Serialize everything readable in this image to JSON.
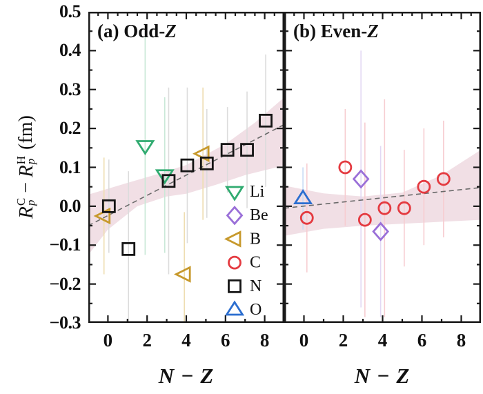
{
  "figure": {
    "background": "#ffffff",
    "border_color": "#1a1a1a",
    "band_color": "#f0dbe2",
    "trend_color": "#6a6a6a",
    "text_color": "#111111"
  },
  "y_axis": {
    "label": {
      "r1": "R",
      "sup1": "C",
      "sub1": "p",
      "minus": "−",
      "r2": "R",
      "sup2": "H",
      "sub2": "p",
      "unit": "(fm)"
    },
    "tick_values": [
      0.5,
      0.4,
      0.3,
      0.2,
      0.1,
      0.0,
      -0.1,
      -0.2,
      -0.3
    ],
    "tick_labels": [
      "0.5",
      "0.4",
      "0.3",
      "0.2",
      "0.1",
      "0.0",
      "−0.1",
      "−0.2",
      "−0.3"
    ]
  },
  "x_axis": {
    "tick_values": [
      0,
      2,
      4,
      6,
      8
    ],
    "tick_labels": [
      "0",
      "2",
      "4",
      "6",
      "8"
    ]
  },
  "series": {
    "Li": {
      "marker": "triangle-down",
      "color": "#30ab70",
      "light": "#c9e8d7"
    },
    "Be": {
      "marker": "diamond",
      "color": "#9a6fd8",
      "light": "#e3d8f4"
    },
    "B": {
      "marker": "triangle-left",
      "color": "#c7992c",
      "light": "#eeddb0"
    },
    "C": {
      "marker": "circle",
      "color": "#e43a40",
      "light": "#f7cdd1"
    },
    "N": {
      "marker": "square",
      "color": "#141414",
      "light": "#dcdcdc"
    },
    "O": {
      "marker": "triangle-up",
      "color": "#2b6ed0",
      "light": "#c9dbf4"
    }
  },
  "legend": [
    {
      "key": "Li",
      "label": "Li"
    },
    {
      "key": "Be",
      "label": "Be"
    },
    {
      "key": "B",
      "label": "B"
    },
    {
      "key": "C",
      "label": "C"
    },
    {
      "key": "N",
      "label": "N"
    },
    {
      "key": "O",
      "label": "O"
    }
  ],
  "chart_data": [
    {
      "type": "scatter",
      "id": "panel-odd-z",
      "title_prefix": "(a) Odd-",
      "title_z": "Z",
      "xlabel": "N − Z",
      "xlim": [
        -1,
        9
      ],
      "ylim": [
        -0.3,
        0.5
      ],
      "show_y_tick_labels": true,
      "trend": {
        "x": [
          -1,
          9
        ],
        "y": [
          -0.05,
          0.21
        ]
      },
      "band": {
        "top": [
          [
            -1,
            0.03
          ],
          [
            1,
            0.06
          ],
          [
            2.5,
            0.082
          ],
          [
            4,
            0.106
          ],
          [
            6,
            0.16
          ],
          [
            7.5,
            0.215
          ],
          [
            9,
            0.28
          ]
        ],
        "bottom": [
          [
            -1,
            -0.125
          ],
          [
            0,
            -0.06
          ],
          [
            1.5,
            0.0
          ],
          [
            3,
            0.025
          ],
          [
            4,
            0.032
          ],
          [
            5.5,
            0.055
          ],
          [
            7,
            0.08
          ],
          [
            9,
            0.105
          ]
        ]
      },
      "points": [
        {
          "series": "Li",
          "x": 1.9,
          "y": 0.155,
          "err": 0.28
        },
        {
          "series": "Li",
          "x": 2.9,
          "y": 0.08,
          "err": 0.2
        },
        {
          "series": "B",
          "x": -0.2,
          "y": -0.025,
          "err": 0.15
        },
        {
          "series": "B",
          "x": 3.9,
          "y": -0.175,
          "err": 0.16
        },
        {
          "series": "B",
          "x": 4.85,
          "y": 0.135,
          "err": 0.17
        },
        {
          "series": "N",
          "x": 0.05,
          "y": 0.0,
          "err": 0.12
        },
        {
          "series": "N",
          "x": 1.05,
          "y": -0.11,
          "err": 0.2
        },
        {
          "series": "N",
          "x": 3.1,
          "y": 0.065,
          "err": 0.24
        },
        {
          "series": "N",
          "x": 4.05,
          "y": 0.105,
          "err": 0.2
        },
        {
          "series": "N",
          "x": 5.05,
          "y": 0.11,
          "err": 0.14
        },
        {
          "series": "N",
          "x": 6.1,
          "y": 0.145,
          "err": 0.11
        },
        {
          "series": "N",
          "x": 7.1,
          "y": 0.145,
          "err": 0.15
        },
        {
          "series": "N",
          "x": 8.05,
          "y": 0.22,
          "err": 0.17
        }
      ]
    },
    {
      "type": "scatter",
      "id": "panel-even-z",
      "title_prefix": "(b) Even-",
      "title_z": "Z",
      "xlabel": "N − Z",
      "xlim": [
        -1,
        9
      ],
      "ylim": [
        -0.3,
        0.5
      ],
      "show_y_tick_labels": false,
      "trend": {
        "x": [
          -1,
          9
        ],
        "y": [
          -0.005,
          0.048
        ]
      },
      "band": {
        "top": [
          [
            -1,
            0.053
          ],
          [
            1,
            0.033
          ],
          [
            3,
            0.025
          ],
          [
            5,
            0.035
          ],
          [
            7,
            0.08
          ],
          [
            9,
            0.145
          ]
        ],
        "bottom": [
          [
            -1,
            -0.076
          ],
          [
            1,
            -0.058
          ],
          [
            3,
            -0.05
          ],
          [
            5,
            -0.045
          ],
          [
            7,
            -0.04
          ],
          [
            9,
            -0.035
          ]
        ]
      },
      "points": [
        {
          "series": "O",
          "x": -0.05,
          "y": 0.02,
          "err": 0.08
        },
        {
          "series": "C",
          "x": 0.15,
          "y": -0.03,
          "err": 0.14
        },
        {
          "series": "C",
          "x": 2.1,
          "y": 0.1,
          "err": 0.15
        },
        {
          "series": "Be",
          "x": 2.9,
          "y": 0.07,
          "err": 0.33
        },
        {
          "series": "C",
          "x": 3.1,
          "y": -0.035,
          "err": 0.25
        },
        {
          "series": "Be",
          "x": 3.9,
          "y": -0.065,
          "err": 0.22
        },
        {
          "series": "C",
          "x": 4.1,
          "y": -0.005,
          "err": 0.28
        },
        {
          "series": "C",
          "x": 5.1,
          "y": -0.005,
          "err": 0.15
        },
        {
          "series": "C",
          "x": 6.1,
          "y": 0.05,
          "err": 0.15
        },
        {
          "series": "C",
          "x": 7.1,
          "y": 0.07,
          "err": 0.15
        }
      ]
    }
  ]
}
